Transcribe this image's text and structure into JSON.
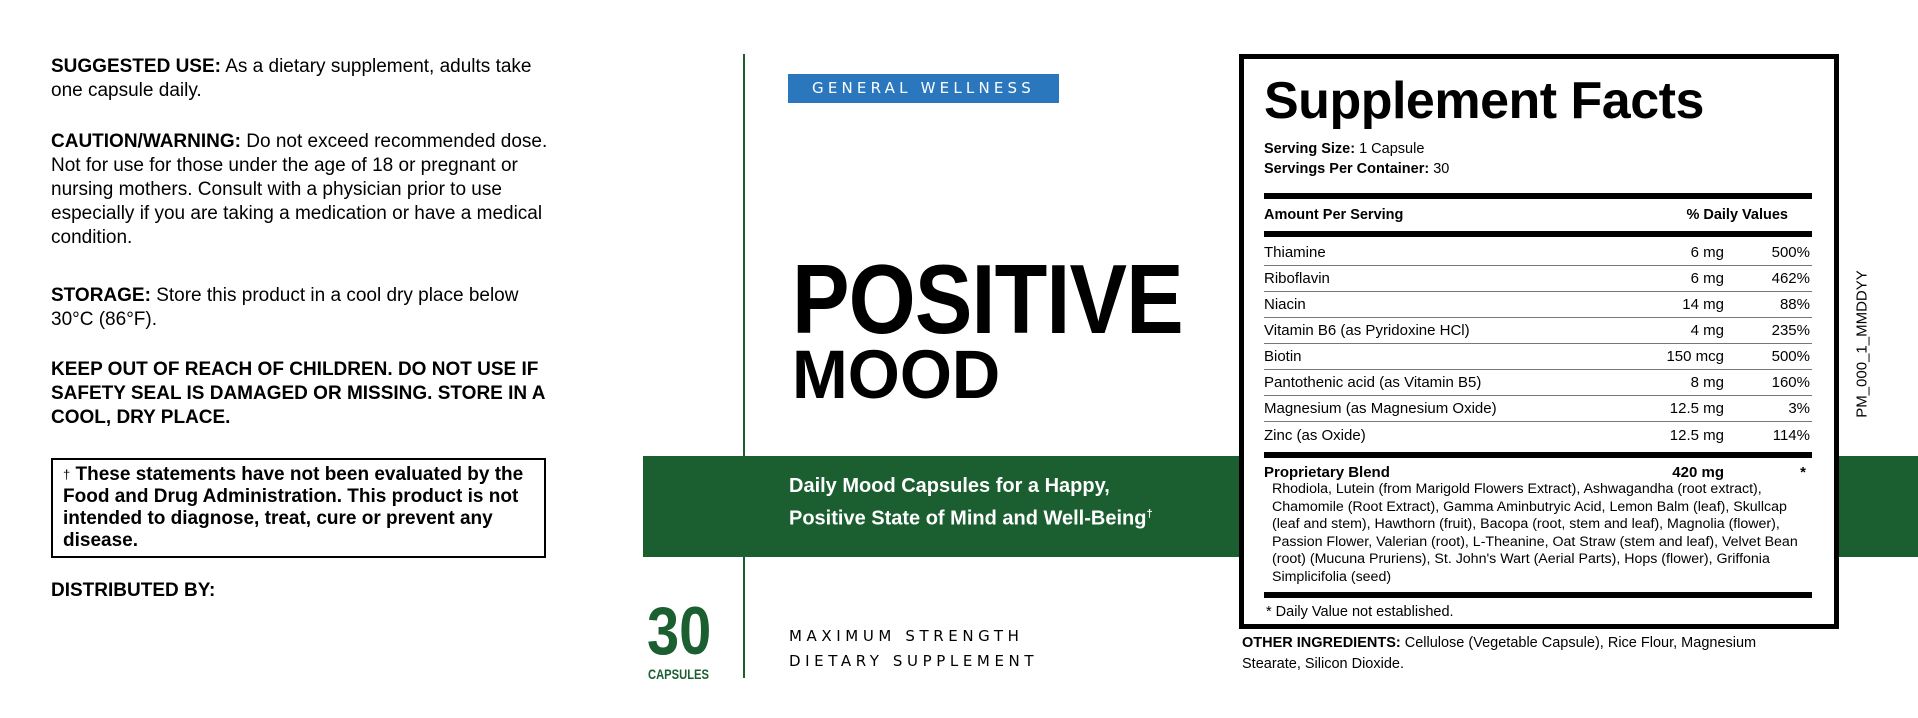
{
  "left_panel": {
    "suggested_use": {
      "label": "SUGGESTED USE:",
      "text": " As a dietary supplement, adults take one capsule daily."
    },
    "caution": {
      "label": "CAUTION/WARNING:",
      "text": " Do not exceed recommended dose. Not for use for those under the age of 18 or pregnant or nursing mothers. Consult with a physician prior to use especially if you are taking a medication or have a medical condition."
    },
    "storage": {
      "label": "STORAGE:",
      "text": " Store this product in a cool dry place below 30°C (86°F)."
    },
    "keep_out": "KEEP OUT OF REACH OF CHILDREN. DO NOT USE IF SAFETY SEAL IS DAMAGED OR MISSING. STORE IN A COOL, DRY PLACE.",
    "disclaimer_mark": "†",
    "disclaimer": "These statements have not been evaluated by the Food and Drug Administration. This product is not intended to diagnose, treat, cure or prevent any disease.",
    "distributed_by": "DISTRIBUTED BY:"
  },
  "front": {
    "badge": "GENERAL WELLNESS",
    "title_line1": "POSITIVE",
    "title_line2": "MOOD",
    "tagline_line1": "Daily Mood Capsules for a Happy,",
    "tagline_line2": "Positive State of Mind and Well-Being",
    "tagline_mark": "†",
    "count": "30",
    "count_unit": "CAPSULES",
    "strength_line1": "MAXIMUM STRENGTH",
    "strength_line2": "DIETARY SUPPLEMENT",
    "colors": {
      "brand_green": "#1b5e30",
      "badge_blue": "#2a77bd"
    }
  },
  "facts": {
    "title": "Supplement Facts",
    "serving_size_label": "Serving Size:",
    "serving_size": " 1 Capsule",
    "servings_label": "Servings Per Container:",
    "servings": " 30",
    "amount_header": "Amount Per Serving",
    "dv_header": "% Daily Values",
    "rows": [
      {
        "name": "Thiamine",
        "amount": "6 mg",
        "dv": "500%"
      },
      {
        "name": "Riboflavin",
        "amount": "6 mg",
        "dv": "462%"
      },
      {
        "name": "Niacin",
        "amount": "14 mg",
        "dv": "88%"
      },
      {
        "name": "Vitamin B6 (as Pyridoxine HCl)",
        "amount": "4 mg",
        "dv": "235%"
      },
      {
        "name": "Biotin",
        "amount": "150 mcg",
        "dv": "500%"
      },
      {
        "name": "Pantothenic acid (as Vitamin B5)",
        "amount": "8 mg",
        "dv": "160%"
      },
      {
        "name": "Magnesium (as Magnesium Oxide)",
        "amount": "12.5 mg",
        "dv": "3%"
      },
      {
        "name": "Zinc (as Oxide)",
        "amount": "12.5 mg",
        "dv": "114%"
      }
    ],
    "blend": {
      "name": "Proprietary Blend",
      "amount": "420 mg",
      "dv": "*",
      "ingredients": "Rhodiola, Lutein (from Marigold Flowers Extract), Ashwagandha (root extract), Chamomile (Root Extract), Gamma Aminbutryic Acid, Lemon Balm (leaf), Skullcap (leaf and stem), Hawthorn (fruit), Bacopa (root, stem and leaf), Magnolia (flower), Passion Flower, Valerian (root), L-Theanine, Oat Straw (stem and leaf), Velvet Bean (root) (Mucuna Pruriens), St. John's Wart (Aerial Parts), Hops (flower), Griffonia Simplicifolia (seed)"
    },
    "footnote": "* Daily Value not established."
  },
  "other_ingredients": {
    "label": "OTHER INGREDIENTS:",
    "text": " Cellulose (Vegetable Capsule), Rice Flour, Magnesium Stearate, Silicon Dioxide."
  },
  "lot_code": "PM_000_1_MMDDYY"
}
